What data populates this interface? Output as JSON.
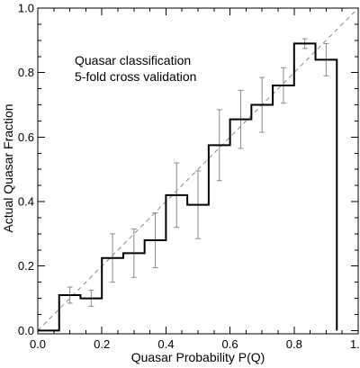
{
  "chart_data": {
    "type": "line",
    "subtype": "step-histogram-with-error-bars",
    "xlabel": "Quasar Probability P(Q)",
    "ylabel": "Actual Quasar Fraction",
    "annotation_lines": [
      "Quasar classification",
      "5-fold cross validation"
    ],
    "xlim": [
      0.0,
      1.0
    ],
    "ylim": [
      -0.01,
      1.0
    ],
    "x_ticks": [
      0.0,
      0.2,
      0.4,
      0.6,
      0.8,
      1.0
    ],
    "x_tick_labels": [
      "0.0",
      "0.2",
      "0.4",
      "0.6",
      "0.8",
      "1.0"
    ],
    "y_ticks": [
      0.0,
      0.2,
      0.4,
      0.6,
      0.8,
      1.0
    ],
    "y_tick_labels": [
      "0.0",
      "0.2",
      "0.4",
      "0.6",
      "0.8",
      "1.0"
    ],
    "bin_edges": [
      0.0,
      0.0667,
      0.1333,
      0.2,
      0.2667,
      0.3333,
      0.4,
      0.4667,
      0.5333,
      0.6,
      0.6667,
      0.7333,
      0.8,
      0.8667,
      0.9333
    ],
    "series": [
      {
        "values": [
          0.0,
          0.11,
          0.1,
          0.225,
          0.24,
          0.28,
          0.42,
          0.39,
          0.575,
          0.655,
          0.7,
          0.76,
          0.89,
          0.84
        ],
        "errors": [
          0.0,
          0.025,
          0.025,
          0.075,
          0.075,
          0.085,
          0.1,
          0.105,
          0.11,
          0.09,
          0.085,
          0.055,
          0.015,
          0.05
        ]
      }
    ],
    "reference_line": {
      "style": "dashed",
      "from": [
        0.0,
        0.0
      ],
      "to": [
        1.0,
        1.0
      ],
      "color": "#8a8a8a"
    },
    "grid": false,
    "legend": "none",
    "colors": {
      "step": "#000000",
      "error_bars": "#8a8a8a",
      "reference": "#8a8a8a",
      "axes": "#000000"
    }
  }
}
